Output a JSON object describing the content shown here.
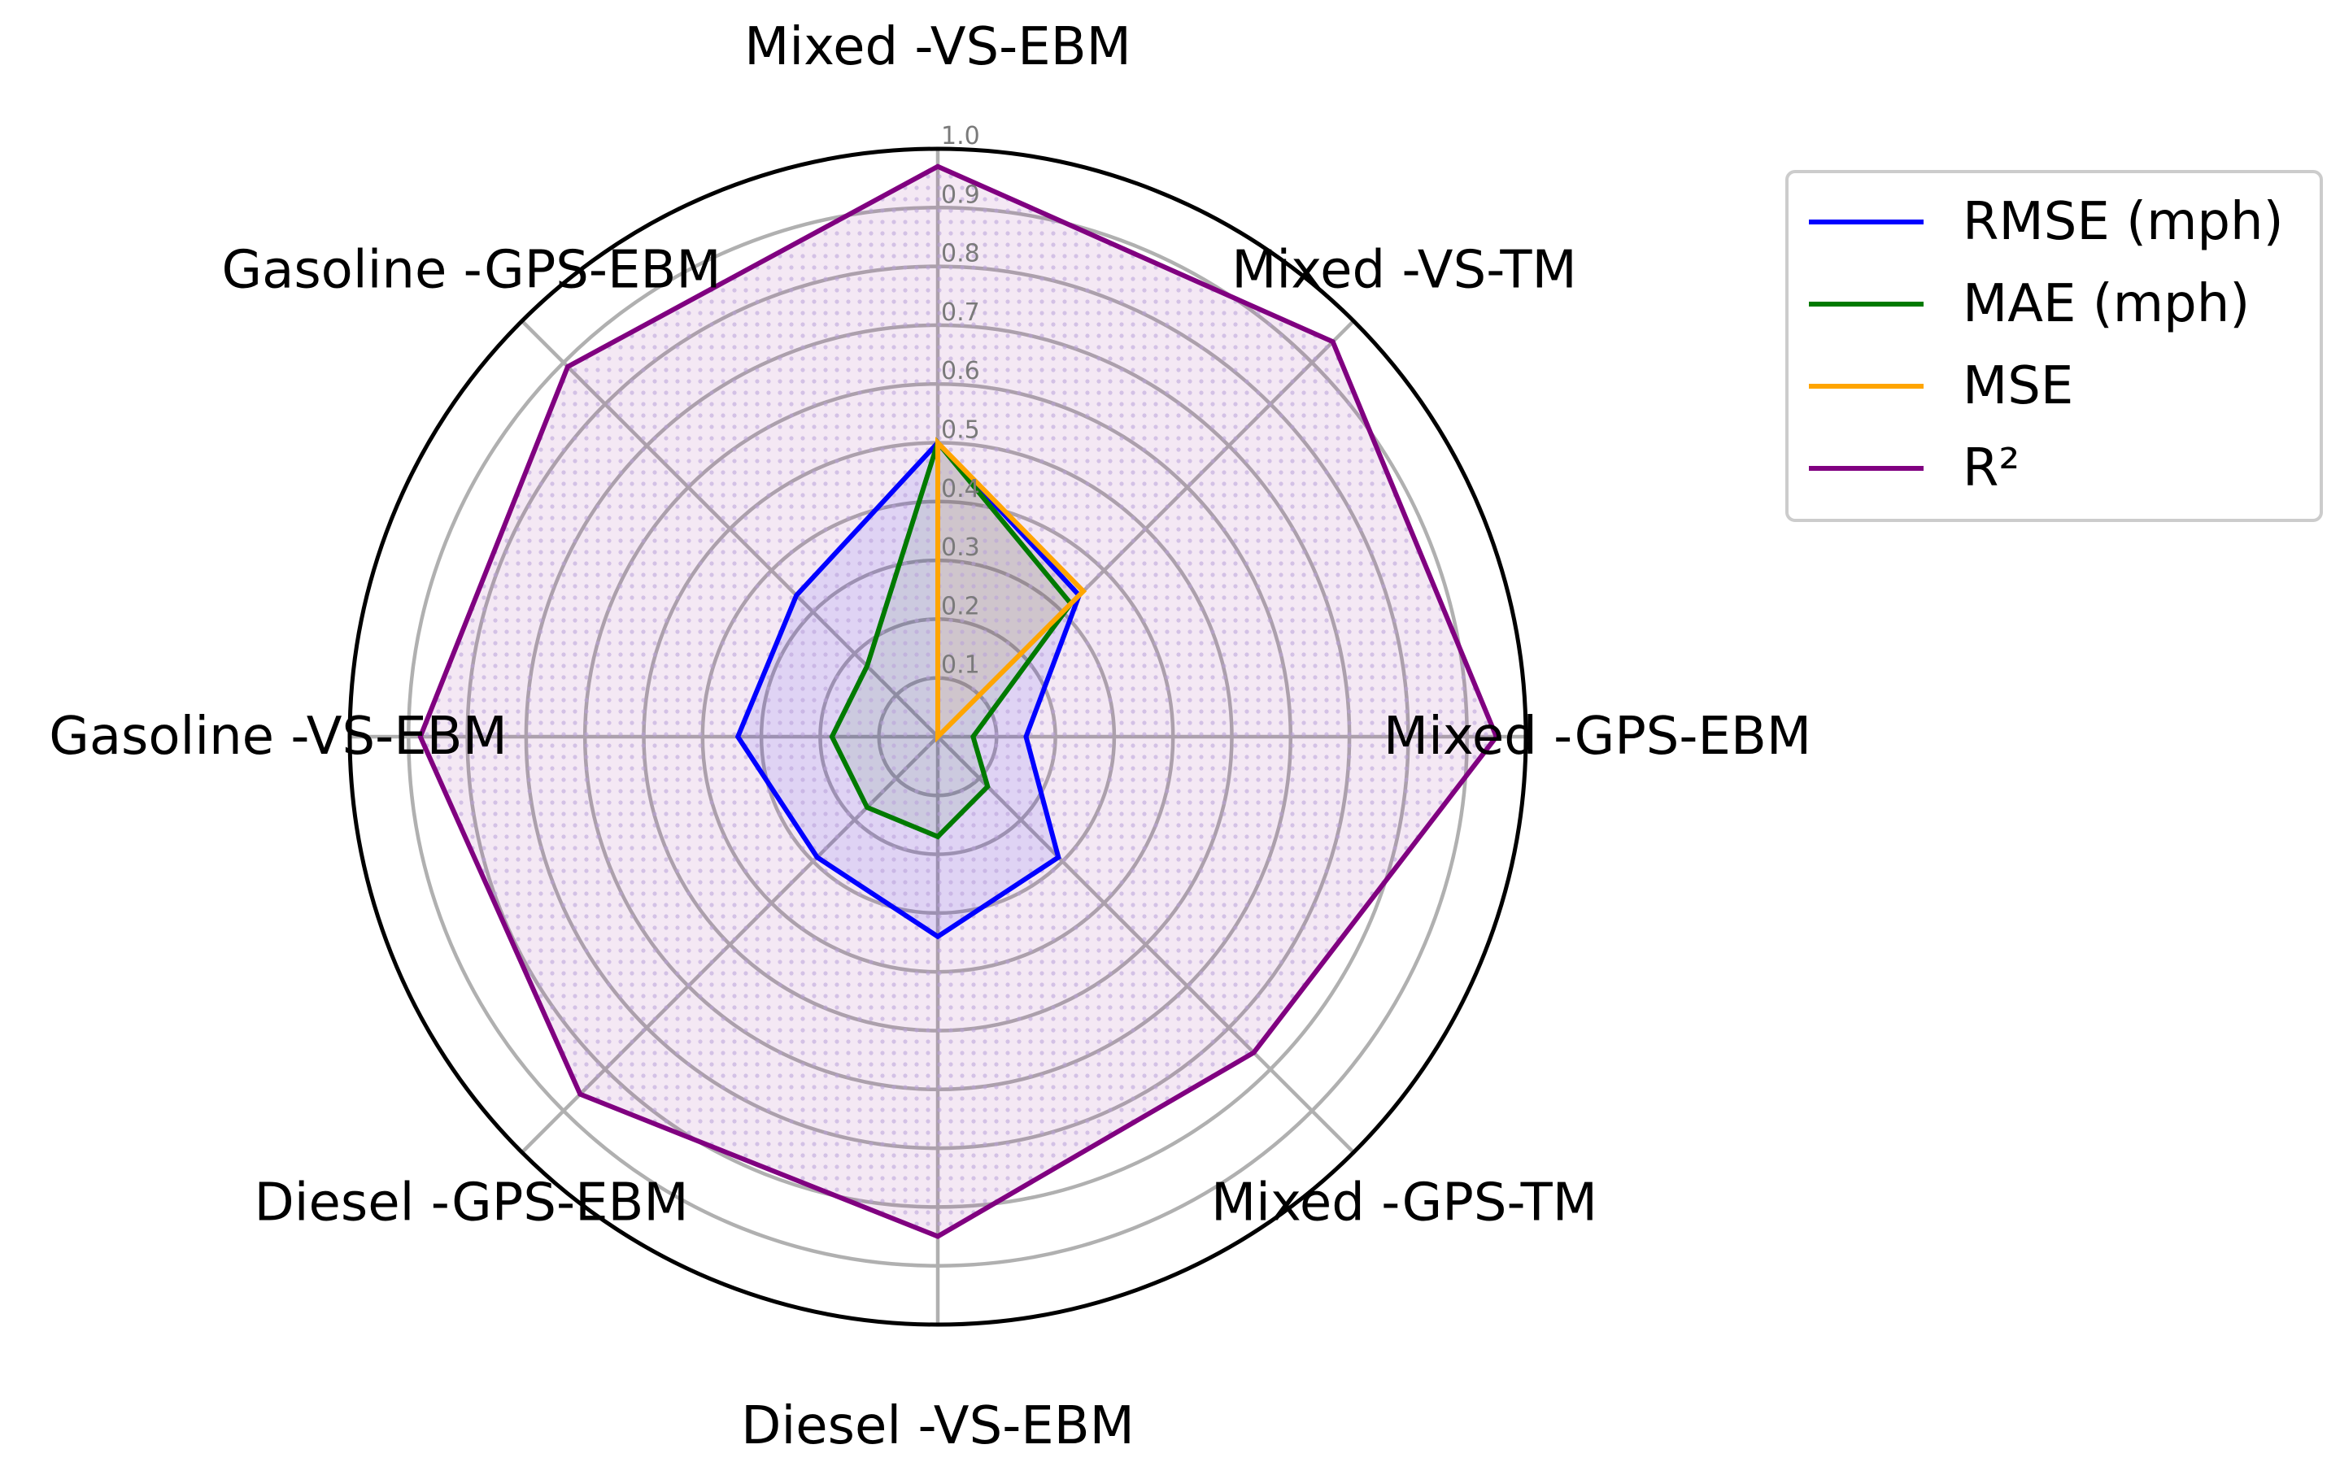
{
  "chart_data": {
    "type": "radar",
    "categories": [
      "Mixed -VS-EBM",
      "Mixed -VS-TM",
      "Mixed -GPS-EBM",
      "Mixed -GPS-TM",
      "Diesel -VS-EBM",
      "Diesel -GPS-EBM",
      "Gasoline -VS-EBM",
      "Gasoline -GPS-EBM"
    ],
    "rlim": [
      0,
      1.0
    ],
    "ticks": [
      "0.1",
      "0.2",
      "0.3",
      "0.4",
      "0.5",
      "0.6",
      "0.7",
      "0.8",
      "0.9",
      "1.0"
    ],
    "tick_values": [
      0.1,
      0.2,
      0.3,
      0.4,
      0.5,
      0.6,
      0.7,
      0.8,
      0.9,
      1.0
    ],
    "grid": true,
    "legend_position": "top-right",
    "series": [
      {
        "name": "RMSE (mph)",
        "color": "#0000ff",
        "values": [
          0.5,
          0.34,
          0.15,
          0.29,
          0.34,
          0.29,
          0.34,
          0.34
        ]
      },
      {
        "name": "MAE (mph)",
        "color": "#007a00",
        "values": [
          0.5,
          0.32,
          0.06,
          0.12,
          0.17,
          0.17,
          0.18,
          0.17
        ]
      },
      {
        "name": "MSE",
        "color": "#ffa500",
        "values": [
          0.5,
          0.35,
          0.0,
          0.0,
          0.0,
          0.0,
          0.0,
          0.0
        ]
      },
      {
        "name": "R²",
        "color": "#800080",
        "values": [
          0.97,
          0.95,
          0.95,
          0.76,
          0.85,
          0.86,
          0.88,
          0.89
        ]
      }
    ]
  }
}
